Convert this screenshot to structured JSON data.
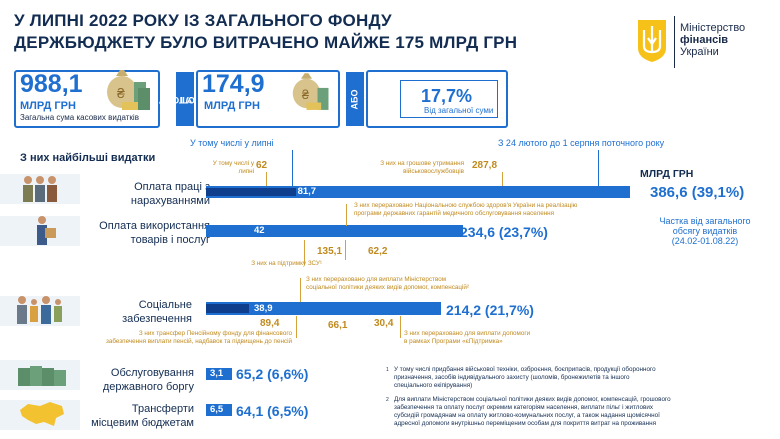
{
  "title_line1": "У ЛИПНІ  2022 РОКУ ІЗ ЗАГАЛЬНОГО ФОНДУ",
  "title_line2": "ДЕРЖБЮДЖЕТУ БУЛО ВИТРАЧЕНО МАЙЖЕ 175 МЛРД ГРН",
  "ministry": {
    "line1": "Міністерство",
    "line2": "фінансів",
    "line3": "України"
  },
  "kpi": {
    "total_value": "988,1",
    "total_unit": "МЛРД ГРН",
    "total_sub": "Загальна сума касових видатків",
    "tab1": "У ТОМУ",
    "tab2": "ЧИСЛІ",
    "july_value": "174,9",
    "july_unit": "МЛРД ГРН",
    "abo": "АБО",
    "share_value": "17,7%",
    "share_sub": "Від загальної суми"
  },
  "section_title": "З них найбільші видатки",
  "legend_july": "У тому числі у липні",
  "legend_period": "З 24 лютого до 1 серпня поточного року",
  "unit_label": "МЛРД ГРН",
  "share_note_1": "Частка від загального",
  "share_note_2": "обсягу видатків",
  "share_note_3": "(24.02-01.08.22)",
  "categories": [
    {
      "label1": "Оплата праці з",
      "label2": "нарахуваннями",
      "july": "81,7",
      "total": "386,6 (39,1%)",
      "ann_july_text1": "У тому числі у",
      "ann_july_text2": "липні",
      "ann_july_num": "62",
      "ann_b_text1": "З них на грошове утримання",
      "ann_b_text2": "військовослужбовців",
      "ann_b_num": "287,8"
    },
    {
      "label1": "Оплата використання",
      "label2": "товарів і послуг",
      "july": "42",
      "total": "234,6 (23,7%)",
      "ann_top1": "З них перераховано Національною службою здоров'я України на реалізацію",
      "ann_top2": "програми державних гарантій медичного обслуговування населення",
      "ann_a_num": "135,1",
      "ann_a_text": "З них на підтримку ЗСУ¹",
      "ann_b_num": "62,2"
    },
    {
      "label1": "Соціальне",
      "label2": "забезпечення",
      "july": "38,9",
      "total": "214,2 (21,7%)",
      "ann_top1": "З них перераховано для виплати Міністерством",
      "ann_top2": "соціальної політики деяких видів допомог, компенсацій²",
      "ann_a_num": "89,4",
      "ann_b_num": "66,1",
      "ann_c_num": "30,4",
      "ann_a_text1": "З них трансфер Пенсійному фонду для фінансового",
      "ann_a_text2": "забезпечення виплати пенсій, надбавок та підвищень до пенсій",
      "ann_c_text1": "З них перераховано для виплати допомоги",
      "ann_c_text2": "в рамках Програми «єПідтримка»"
    },
    {
      "label1": "Обслуговування",
      "label2": "державного боргу",
      "july": "3,1",
      "total": "65,2 (6,6%)"
    },
    {
      "label1": "Трансферти",
      "label2": "місцевим бюджетам",
      "july": "6,5",
      "total": "64,1 (6,5%)"
    }
  ],
  "bar_values": {
    "scale_max": 386.6,
    "totals": [
      386.6,
      234.6,
      214.2,
      65.2,
      64.1
    ],
    "july": [
      81.7,
      42,
      38.9,
      3.1,
      6.5
    ]
  },
  "footnote1_mark": "1",
  "footnote1": [
    "У тому числі придбання військової техніки, озброєння, боєприпасів, продукції оборонного",
    "призначення, засобів індивідуального захисту (шоломів, бронежилетів та іншого",
    "спеціального екіпірування)"
  ],
  "footnote2_mark": "2",
  "footnote2": [
    "Для виплати Міністерством соціальної політики деяких видів допомог, компенсацій, грошового",
    "забезпечення та оплату послуг окремим категоріям населення, виплати пільг і житлових",
    "субсидій громадянам на оплату житлово-комунальних послуг, а також надання щомісячної",
    "адресної допомоги внутрішньо переміщеним особам для покриття витрат на проживання"
  ],
  "colors": {
    "blue": "#1e6fd0",
    "dark_blue": "#0f3f8c",
    "gold": "#c08a1e",
    "navy": "#132d52"
  }
}
